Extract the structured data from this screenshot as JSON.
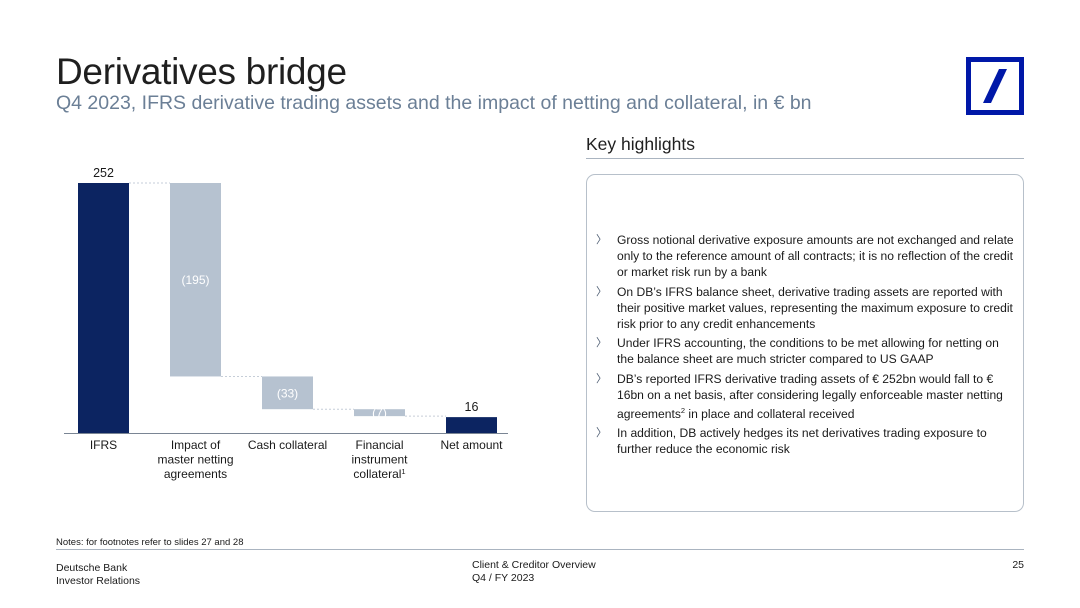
{
  "header": {
    "title": "Derivatives bridge",
    "subtitle": "Q4 2023, IFRS derivative trading assets and the impact of netting and collateral, in € bn"
  },
  "logo": {
    "icon": "deutsche-bank-logo-icon",
    "color": "#0018a8"
  },
  "key_highlights": {
    "title": "Key highlights",
    "bullets": [
      {
        "text": "Gross notional derivative exposure amounts are not exchanged and relate only to the reference amount of all contracts; it is no reflection of the credit or market risk run by a bank"
      },
      {
        "text": "On DB’s IFRS balance sheet, derivative trading assets are reported with their positive market values, representing the maximum exposure to credit risk prior to any credit enhancements"
      },
      {
        "text": "Under IFRS accounting, the conditions to be met allowing for netting on the balance sheet are much stricter compared to US GAAP"
      },
      {
        "text": "DB’s reported IFRS derivative trading assets of € 252bn would fall to € 16bn on a net basis, after considering legally enforceable master netting agreements",
        "sup": "2",
        "tail": " in place and collateral received"
      },
      {
        "text": "In addition, DB actively hedges its net derivatives trading exposure to further reduce the economic risk"
      }
    ]
  },
  "chart_data": {
    "type": "bar",
    "subtype": "waterfall",
    "categories": [
      {
        "lines": [
          "IFRS"
        ],
        "sup": ""
      },
      {
        "lines": [
          "Impact of",
          "master netting",
          "agreements"
        ],
        "sup": ""
      },
      {
        "lines": [
          "Cash collateral"
        ],
        "sup": ""
      },
      {
        "lines": [
          "Financial",
          "instrument",
          "collateral"
        ],
        "sup": "1"
      },
      {
        "lines": [
          "Net amount"
        ],
        "sup": ""
      }
    ],
    "values": [
      252,
      -195,
      -33,
      -7,
      16
    ],
    "data_labels": [
      "252",
      "(195)",
      "(33)",
      "(7)",
      "16"
    ],
    "kinds": [
      "total",
      "delta",
      "delta",
      "delta",
      "total"
    ],
    "ylim": [
      0,
      252
    ],
    "colors": {
      "total": "#0c2461",
      "delta": "#b6c2d0",
      "delta_label": "#ffffff",
      "total_label": "#1a1a1a",
      "connector": "#c6ced8",
      "axis": "#7a8594"
    }
  },
  "notes": "Notes: for footnotes refer to slides 27 and 28",
  "footer": {
    "company": "Deutsche Bank",
    "department": "Investor Relations",
    "doc_title": "Client & Creditor Overview",
    "period": "Q4 / FY 2023",
    "page": "25"
  }
}
